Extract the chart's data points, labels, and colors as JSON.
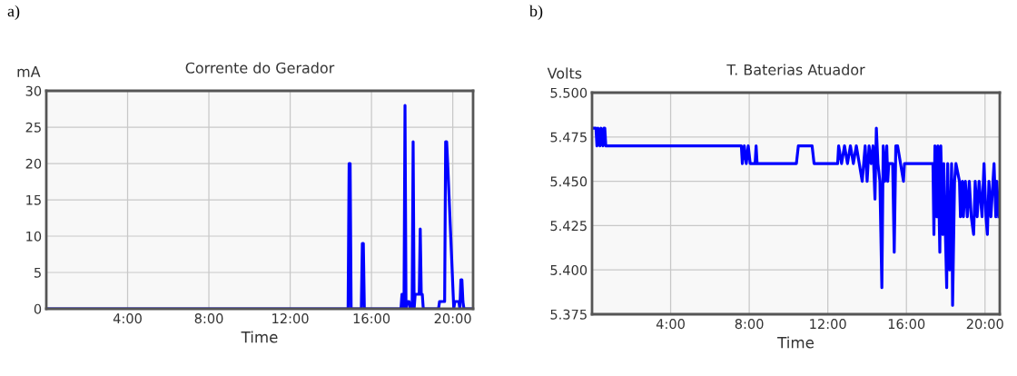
{
  "chart_data": [
    {
      "type": "line",
      "title": "Corrente do Gerador",
      "xlabel": "Time",
      "ylabel": "mA",
      "annotations": [
        "a)"
      ],
      "grid": true,
      "line_style": "solid",
      "xlim": [
        0,
        21
      ],
      "ylim": [
        0,
        30
      ],
      "xticks": [
        {
          "value": 4,
          "label": "4:00"
        },
        {
          "value": 8,
          "label": "8:00"
        },
        {
          "value": 12,
          "label": "12:00"
        },
        {
          "value": 16,
          "label": "16:00"
        },
        {
          "value": 20,
          "label": "20:00"
        }
      ],
      "yticks": [
        0,
        5,
        10,
        15,
        20,
        25,
        30
      ],
      "series": [
        {
          "color": "#0000ff",
          "x": [
            0,
            14.85,
            14.9,
            14.95,
            15.0,
            15.5,
            15.55,
            15.6,
            15.65,
            17.45,
            17.5,
            17.55,
            17.6,
            17.65,
            17.7,
            17.75,
            17.85,
            17.9,
            18.0,
            18.05,
            18.1,
            18.15,
            18.2,
            18.35,
            18.4,
            18.45,
            18.5,
            18.55,
            19.3,
            19.35,
            19.6,
            19.65,
            19.7,
            19.75,
            20.05,
            20.1,
            20.3,
            20.35,
            20.4,
            20.45,
            20.5,
            20.55,
            21
          ],
          "values": [
            0,
            0,
            20,
            20,
            0,
            0,
            9,
            9,
            0,
            0,
            2,
            2,
            0,
            28,
            0,
            1,
            1,
            0,
            0,
            23,
            0,
            2,
            2,
            2,
            11,
            2,
            2,
            0,
            0,
            1,
            1,
            23,
            23,
            20,
            0,
            1,
            1,
            0,
            4,
            4,
            1,
            0,
            0
          ]
        }
      ]
    },
    {
      "type": "line",
      "title": "T. Baterias Atuador",
      "xlabel": "Time",
      "ylabel": "Volts",
      "annotations": [
        "b)"
      ],
      "grid": true,
      "line_style": "solid",
      "xlim": [
        0,
        20.75
      ],
      "ylim": [
        5.375,
        5.5
      ],
      "xticks": [
        {
          "value": 4,
          "label": "4:00"
        },
        {
          "value": 8,
          "label": "8:00"
        },
        {
          "value": 12,
          "label": "12:00"
        },
        {
          "value": 16,
          "label": "16:00"
        },
        {
          "value": 20,
          "label": "20:00"
        }
      ],
      "yticks": [
        {
          "value": 5.375,
          "label": "5.375"
        },
        {
          "value": 5.4,
          "label": "5.400"
        },
        {
          "value": 5.425,
          "label": "5.425"
        },
        {
          "value": 5.45,
          "label": "5.450"
        },
        {
          "value": 5.475,
          "label": "5.475"
        },
        {
          "value": 5.5,
          "label": "5.500"
        }
      ],
      "series": [
        {
          "color": "#0000ff",
          "x": [
            0,
            0.2,
            0.25,
            0.3,
            0.4,
            0.45,
            0.55,
            0.6,
            0.65,
            0.7,
            7.6,
            7.65,
            7.75,
            7.85,
            7.95,
            8.05,
            8.3,
            8.35,
            8.4,
            10.4,
            10.5,
            11.2,
            11.3,
            12.5,
            12.55,
            12.7,
            12.85,
            13.0,
            13.15,
            13.3,
            13.45,
            13.6,
            13.75,
            13.9,
            14.0,
            14.1,
            14.2,
            14.3,
            14.4,
            14.47,
            14.55,
            14.65,
            14.75,
            14.82,
            14.9,
            15.0,
            15.05,
            15.1,
            15.3,
            15.38,
            15.46,
            15.55,
            15.85,
            15.9,
            17.35,
            17.4,
            17.45,
            17.55,
            17.6,
            17.7,
            17.75,
            17.85,
            17.9,
            18.05,
            18.1,
            18.2,
            18.3,
            18.35,
            18.45,
            18.52,
            18.7,
            18.75,
            18.85,
            18.9,
            19.0,
            19.1,
            19.2,
            19.3,
            19.42,
            19.5,
            19.6,
            19.7,
            19.85,
            19.95,
            20.05,
            20.12,
            20.2,
            20.3,
            20.46,
            20.55,
            20.6,
            20.7
          ],
          "values": [
            5.48,
            5.48,
            5.47,
            5.48,
            5.47,
            5.48,
            5.47,
            5.48,
            5.48,
            5.47,
            5.47,
            5.46,
            5.47,
            5.46,
            5.47,
            5.46,
            5.46,
            5.47,
            5.46,
            5.46,
            5.47,
            5.47,
            5.46,
            5.46,
            5.47,
            5.46,
            5.47,
            5.46,
            5.47,
            5.46,
            5.47,
            5.46,
            5.45,
            5.47,
            5.45,
            5.47,
            5.46,
            5.47,
            5.44,
            5.48,
            5.46,
            5.45,
            5.39,
            5.47,
            5.45,
            5.47,
            5.45,
            5.46,
            5.46,
            5.41,
            5.47,
            5.47,
            5.45,
            5.46,
            5.46,
            5.42,
            5.47,
            5.43,
            5.47,
            5.41,
            5.47,
            5.42,
            5.46,
            5.39,
            5.46,
            5.4,
            5.46,
            5.38,
            5.45,
            5.46,
            5.45,
            5.43,
            5.45,
            5.43,
            5.45,
            5.43,
            5.45,
            5.43,
            5.42,
            5.45,
            5.43,
            5.45,
            5.43,
            5.46,
            5.43,
            5.42,
            5.45,
            5.43,
            5.46,
            5.43,
            5.45,
            5.43
          ]
        }
      ]
    }
  ]
}
